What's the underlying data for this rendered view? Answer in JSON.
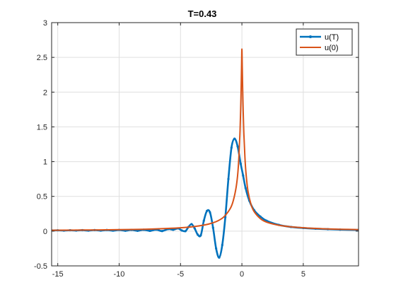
{
  "chart_data": {
    "type": "line",
    "title": "T=0.43",
    "xlabel": "",
    "ylabel": "",
    "xlim": [
      -15.5,
      9.5
    ],
    "ylim": [
      -0.5,
      3
    ],
    "xticks": [
      -15,
      -10,
      -5,
      0,
      5
    ],
    "yticks": [
      -0.5,
      0,
      0.5,
      1,
      1.5,
      2,
      2.5,
      3
    ],
    "xtick_labels": [
      "-15",
      "-10",
      "-5",
      "0",
      "5"
    ],
    "ytick_labels": [
      "-0.5",
      "0",
      "0.5",
      "1",
      "1.5",
      "2",
      "2.5",
      "3"
    ],
    "grid": true,
    "legend_position": "top-right",
    "series": [
      {
        "name": "u(T)",
        "color": "#0072BD",
        "marker": "dot",
        "x": [
          -15.5,
          -15.0,
          -14.5,
          -14.0,
          -13.5,
          -13.0,
          -12.5,
          -12.0,
          -11.5,
          -11.0,
          -10.5,
          -10.0,
          -9.5,
          -9.0,
          -8.5,
          -8.0,
          -7.5,
          -7.0,
          -6.5,
          -6.0,
          -5.6,
          -5.2,
          -4.9,
          -4.6,
          -4.35,
          -4.1,
          -3.85,
          -3.6,
          -3.35,
          -3.1,
          -2.85,
          -2.6,
          -2.35,
          -2.1,
          -1.85,
          -1.6,
          -1.35,
          -1.1,
          -0.85,
          -0.6,
          -0.35,
          -0.1,
          0.1,
          0.3,
          0.6,
          1.0,
          1.5,
          2.0,
          3.0,
          4.0,
          5.0,
          6.0,
          7.0,
          8.0,
          9.5
        ],
        "y": [
          0.01,
          0.012,
          0.008,
          0.013,
          0.009,
          0.014,
          0.008,
          0.015,
          0.008,
          0.016,
          0.007,
          0.017,
          0.006,
          0.018,
          0.005,
          0.02,
          0.004,
          0.022,
          0.001,
          0.03,
          0.02,
          0.04,
          0.01,
          0.0,
          0.06,
          0.1,
          0.04,
          -0.05,
          -0.06,
          0.15,
          0.29,
          0.27,
          0.05,
          -0.25,
          -0.38,
          -0.2,
          0.2,
          0.75,
          1.2,
          1.33,
          1.22,
          0.97,
          0.8,
          0.62,
          0.44,
          0.3,
          0.21,
          0.15,
          0.09,
          0.06,
          0.045,
          0.035,
          0.028,
          0.022,
          0.017
        ]
      },
      {
        "name": "u(0)",
        "color": "#D95319",
        "marker": "none",
        "x": [
          -15.5,
          -14.0,
          -12.0,
          -10.0,
          -8.0,
          -6.0,
          -5.0,
          -4.0,
          -3.0,
          -2.5,
          -2.0,
          -1.5,
          -1.0,
          -0.75,
          -0.5,
          -0.35,
          -0.25,
          -0.15,
          -0.08,
          -0.03,
          0.0,
          0.03,
          0.08,
          0.15,
          0.25,
          0.35,
          0.5,
          0.75,
          1.0,
          1.5,
          2.0,
          3.0,
          4.0,
          5.0,
          6.0,
          7.0,
          8.0,
          9.5
        ],
        "y": [
          0.012,
          0.014,
          0.017,
          0.021,
          0.027,
          0.039,
          0.048,
          0.063,
          0.09,
          0.112,
          0.145,
          0.2,
          0.31,
          0.41,
          0.6,
          0.8,
          1.05,
          1.45,
          1.9,
          2.35,
          2.62,
          2.35,
          1.9,
          1.45,
          1.05,
          0.8,
          0.57,
          0.38,
          0.28,
          0.18,
          0.13,
          0.085,
          0.062,
          0.048,
          0.039,
          0.032,
          0.027,
          0.022
        ]
      }
    ]
  }
}
